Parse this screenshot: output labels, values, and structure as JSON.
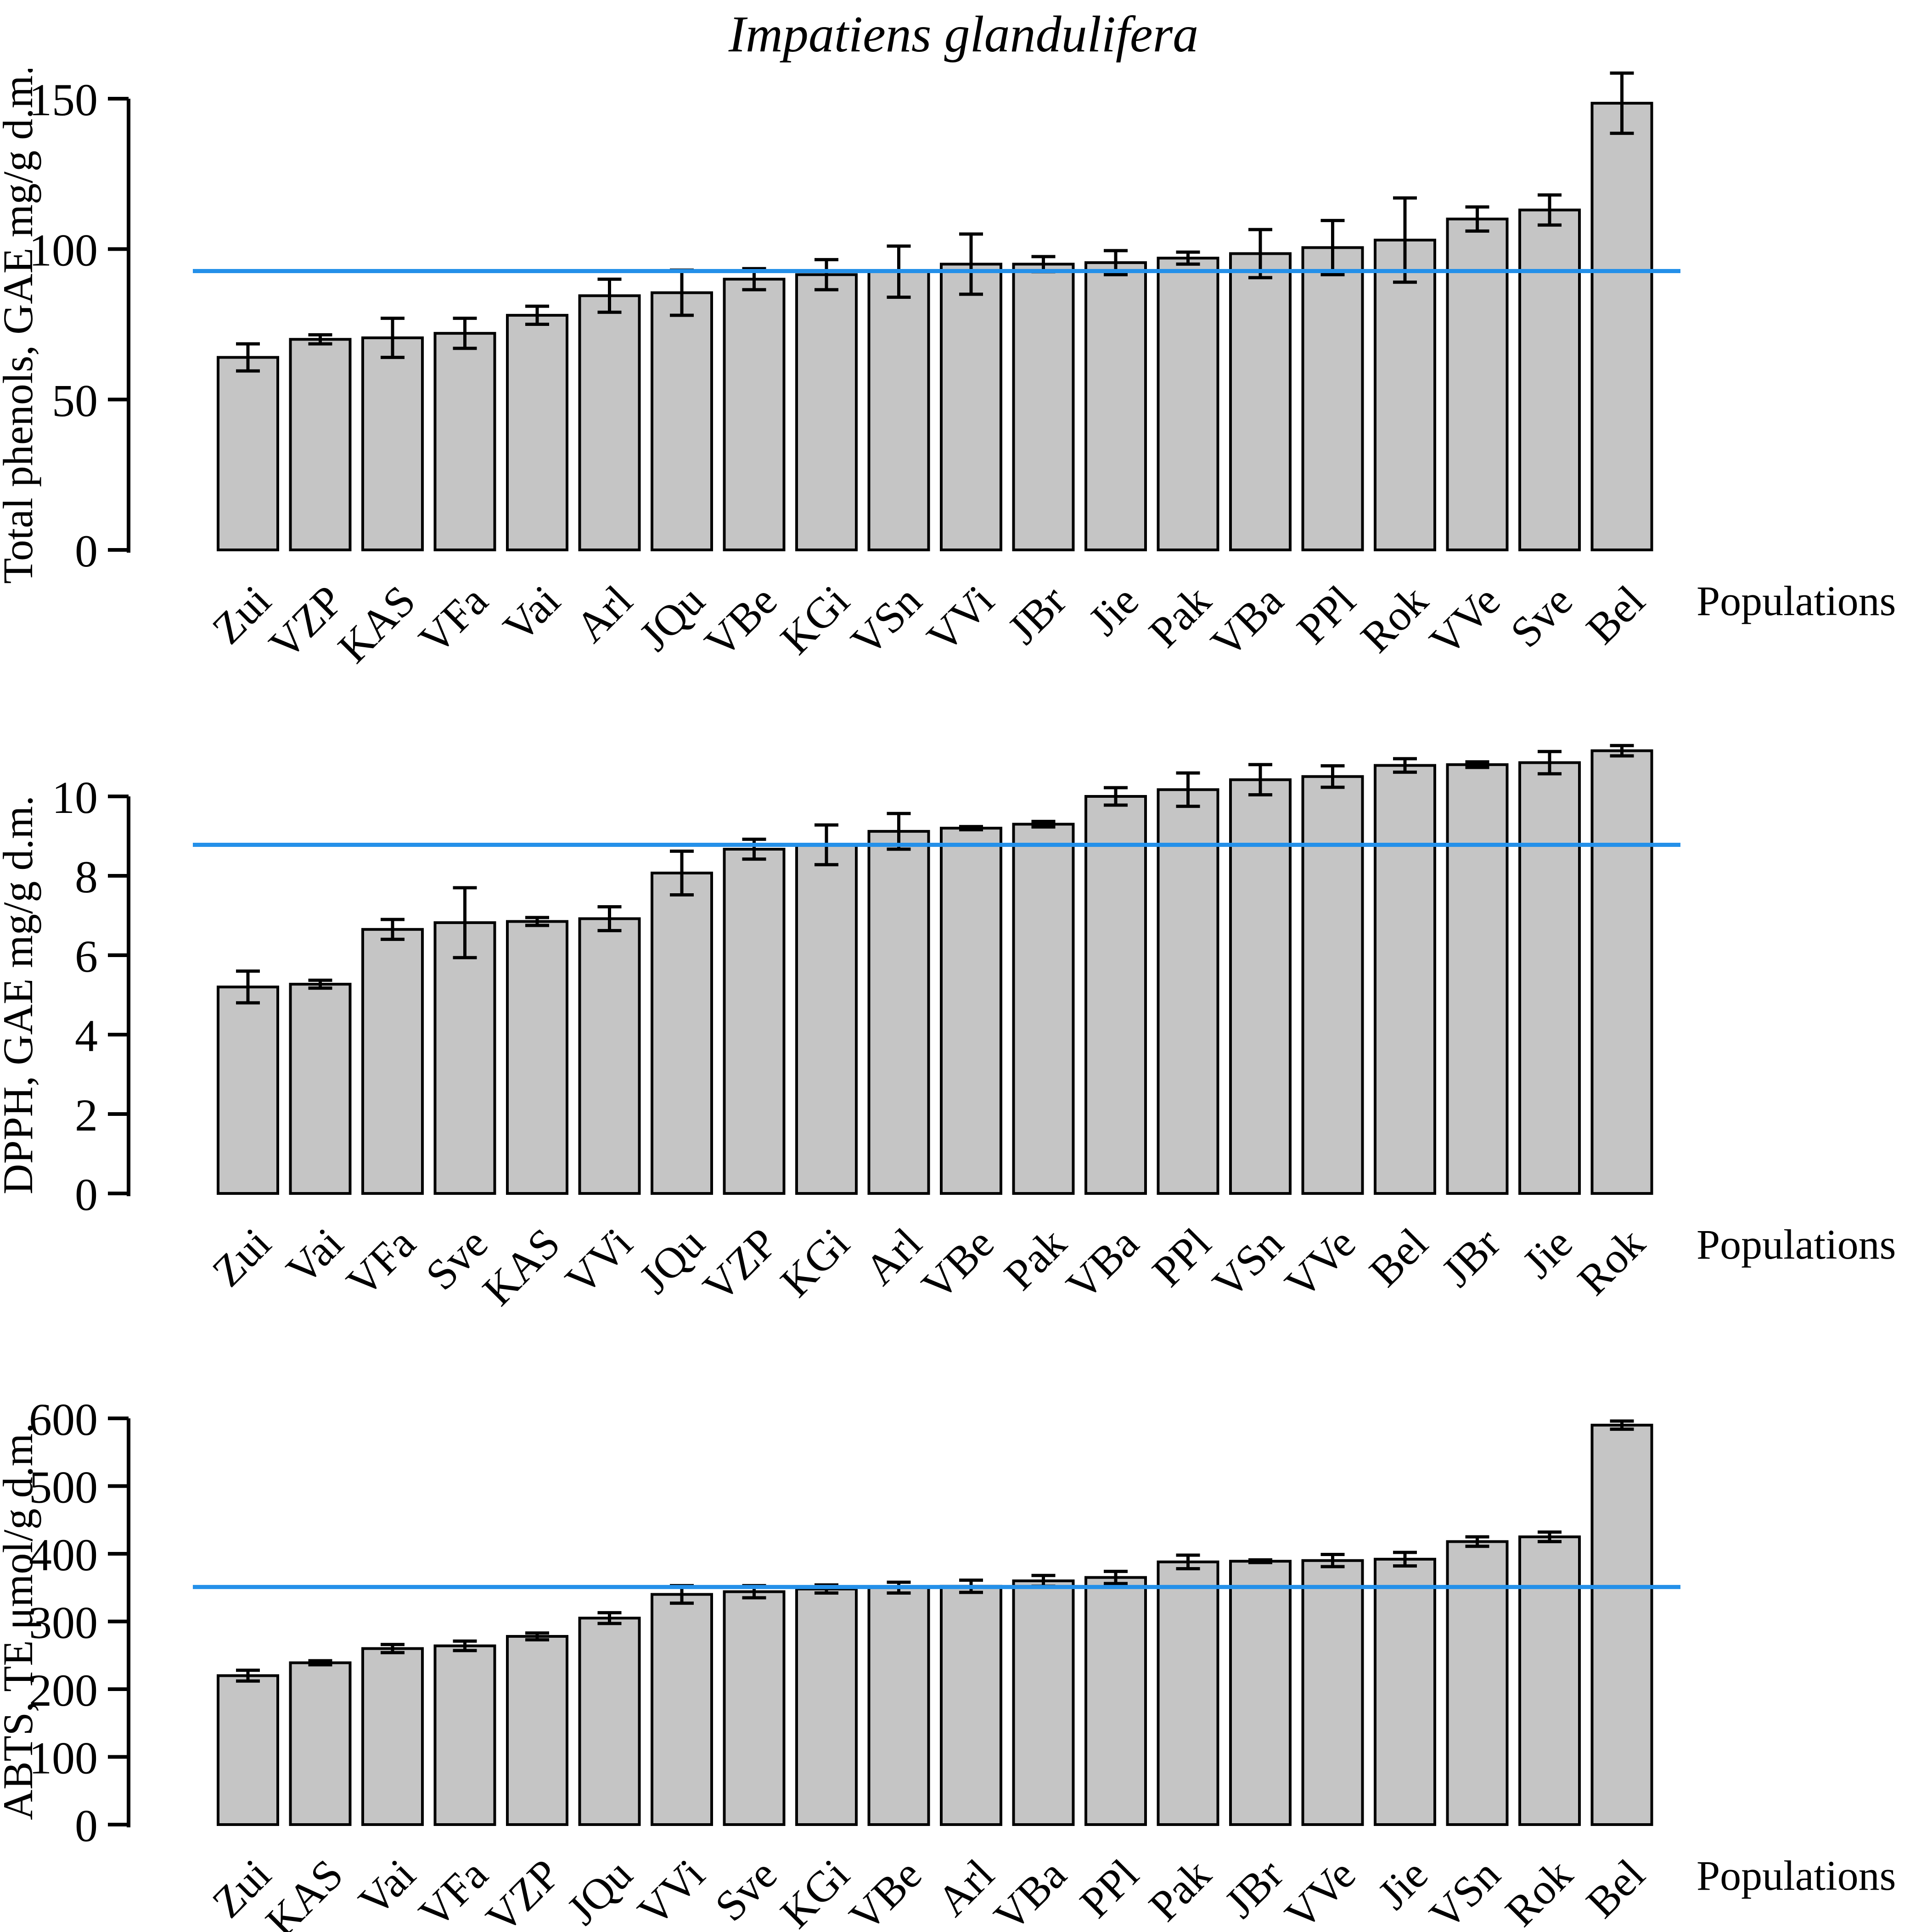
{
  "page": {
    "title": "Impatiens glandulifera",
    "background": "#ffffff"
  },
  "styles": {
    "bar_fill": "#c5c5c5",
    "bar_stroke": "#000000",
    "axis_color": "#000000",
    "error_bar_color": "#000000",
    "mean_line_color": "#2490e9"
  },
  "chart_data": [
    {
      "type": "bar",
      "name": "total-phenols",
      "title": "Impatiens glandulifera",
      "ylabel": "Total phenols, GAE mg/g d.m.",
      "xlabel": "Populations",
      "ylim": [
        0,
        150
      ],
      "yticks": [
        0,
        50,
        100,
        150
      ],
      "grid": false,
      "legend": "none",
      "mean_line": 92.7,
      "categories": [
        "Zui",
        "VZP",
        "KAS",
        "VFa",
        "Vai",
        "Arl",
        "JQu",
        "VBe",
        "KGi",
        "VSn",
        "VVi",
        "JBr",
        "Jie",
        "Pak",
        "VBa",
        "PPl",
        "Rok",
        "VVe",
        "Sve",
        "Bel"
      ],
      "values": [
        64,
        70,
        70.5,
        72,
        78,
        84.5,
        85.5,
        90,
        91.5,
        92.5,
        95,
        95,
        95.5,
        97,
        98.5,
        100.5,
        103,
        110,
        113,
        148.5
      ],
      "errors": [
        4.5,
        1.5,
        6.5,
        5,
        3,
        5.5,
        7.5,
        3.5,
        5,
        8.5,
        10,
        2.5,
        4,
        2,
        8,
        9,
        14,
        4,
        5,
        10
      ]
    },
    {
      "type": "bar",
      "name": "dpph",
      "title": "",
      "ylabel": "DPPH, GAE mg/g d.m.",
      "xlabel": "Populations",
      "ylim": [
        0,
        10
      ],
      "yticks": [
        0,
        2,
        4,
        6,
        8,
        10
      ],
      "grid": false,
      "legend": "none",
      "mean_line": 8.78,
      "categories": [
        "Zui",
        "Vai",
        "VFa",
        "Sve",
        "KAS",
        "VVi",
        "JQu",
        "VZP",
        "KGi",
        "Arl",
        "VBe",
        "Pak",
        "VBa",
        "PPl",
        "VSn",
        "VVe",
        "Bel",
        "JBr",
        "Jie",
        "Rok"
      ],
      "values": [
        5.2,
        5.27,
        6.65,
        6.82,
        6.85,
        6.92,
        8.07,
        8.67,
        8.78,
        9.12,
        9.2,
        9.3,
        10.0,
        10.17,
        10.42,
        10.5,
        10.78,
        10.8,
        10.85,
        11.15
      ],
      "errors": [
        0.4,
        0.1,
        0.25,
        0.88,
        0.1,
        0.3,
        0.55,
        0.25,
        0.5,
        0.45,
        0.04,
        0.07,
        0.22,
        0.42,
        0.38,
        0.27,
        0.17,
        0.07,
        0.28,
        0.13
      ]
    },
    {
      "type": "bar",
      "name": "abts",
      "title": "",
      "ylabel": "ABTS, TE μmol/g d.m.",
      "xlabel": "Populations",
      "ylim": [
        0,
        600
      ],
      "yticks": [
        0,
        100,
        200,
        300,
        400,
        500,
        600
      ],
      "grid": false,
      "legend": "none",
      "mean_line": 350.9,
      "categories": [
        "Zui",
        "KAS",
        "Vai",
        "VFa",
        "VZP",
        "JQu",
        "VVi",
        "Sve",
        "KGi",
        "VBe",
        "Arl",
        "VBa",
        "PPl",
        "Pak",
        "JBr",
        "VVe",
        "Jie",
        "VSn",
        "Rok",
        "Bel"
      ],
      "values": [
        220,
        239,
        260,
        264,
        278,
        305,
        340,
        344,
        348,
        350,
        352,
        360,
        365,
        388,
        389,
        390,
        392,
        418,
        425,
        590
      ],
      "errors": [
        8,
        3,
        6,
        7,
        5,
        8,
        13,
        9,
        6,
        8,
        9,
        8,
        9,
        10,
        2,
        9,
        10,
        7,
        7,
        6
      ]
    }
  ]
}
